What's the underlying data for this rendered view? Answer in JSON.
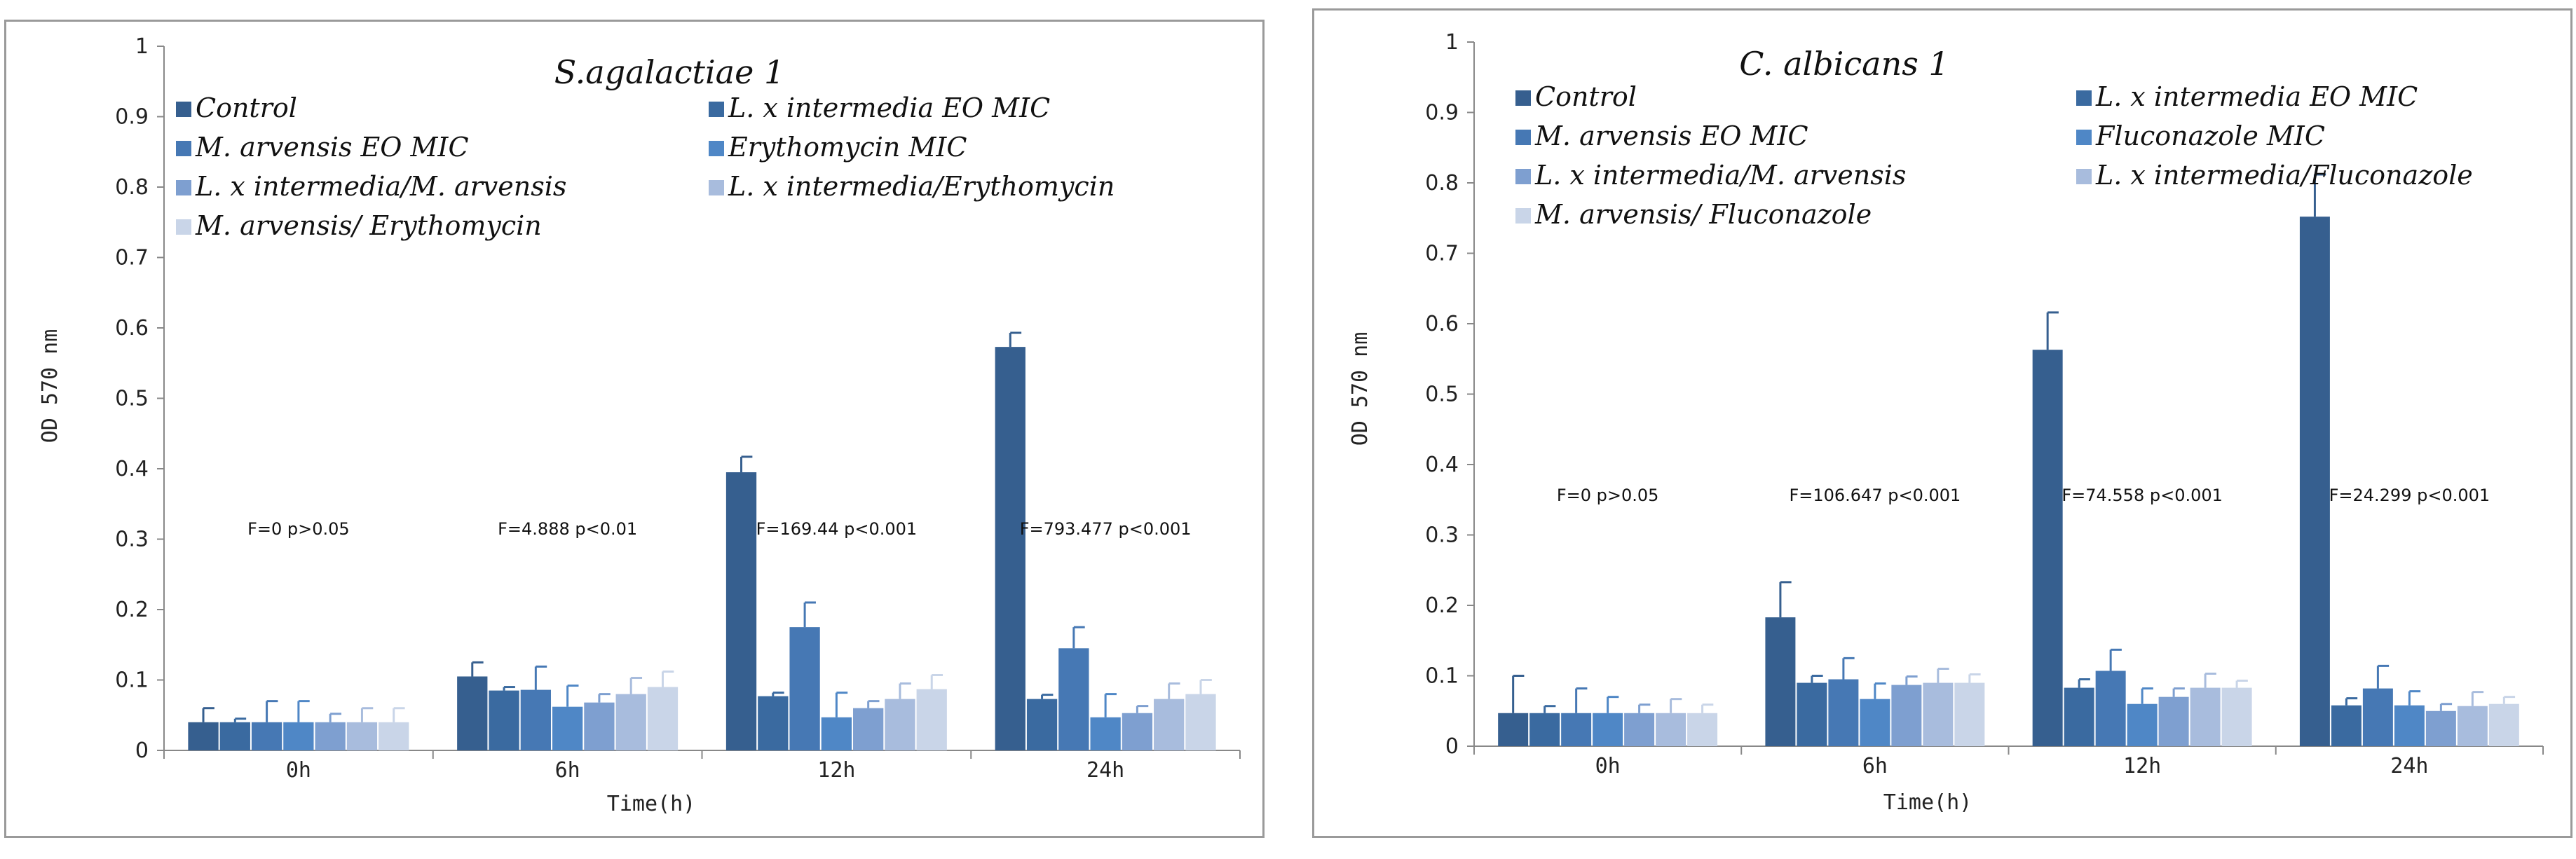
{
  "colors": [
    "#365f8f",
    "#3a6aa0",
    "#4678b4",
    "#4f87c6",
    "#7e9fd0",
    "#a8bcdd",
    "#c9d5e8"
  ],
  "chart_data": [
    {
      "type": "bar",
      "title": "S.agalactiae 1",
      "xlabel": "Time(h)",
      "ylabel": "OD 570 nm",
      "ylim": [
        0,
        1
      ],
      "yticks": [
        "0",
        "0.1",
        "0.2",
        "0.3",
        "0.4",
        "0.5",
        "0.6",
        "0.7",
        "0.8",
        "0.9",
        "1"
      ],
      "categories": [
        "0h",
        "6h",
        "12h",
        "24h"
      ],
      "legend_position": "top",
      "series": [
        {
          "name": "Control",
          "values": [
            0.04,
            0.105,
            0.395,
            0.573
          ],
          "errors": [
            0.02,
            0.02,
            0.022,
            0.02
          ]
        },
        {
          "name": "L. x intermedia EO MIC",
          "values": [
            0.04,
            0.085,
            0.077,
            0.073
          ],
          "errors": [
            0.005,
            0.005,
            0.005,
            0.006
          ]
        },
        {
          "name": "M. arvensis  EO MIC",
          "values": [
            0.04,
            0.086,
            0.175,
            0.145
          ],
          "errors": [
            0.03,
            0.033,
            0.035,
            0.03
          ]
        },
        {
          "name": "Erythomycin MIC",
          "values": [
            0.04,
            0.062,
            0.047,
            0.047
          ],
          "errors": [
            0.03,
            0.03,
            0.035,
            0.033
          ]
        },
        {
          "name": "L. x intermedia/M. arvensis",
          "values": [
            0.04,
            0.068,
            0.06,
            0.053
          ],
          "errors": [
            0.012,
            0.012,
            0.01,
            0.01
          ]
        },
        {
          "name": "L. x intermedia/Erythomycin",
          "values": [
            0.04,
            0.08,
            0.073,
            0.073
          ],
          "errors": [
            0.02,
            0.023,
            0.022,
            0.022
          ]
        },
        {
          "name": "M. arvensis/ Erythomycin",
          "values": [
            0.04,
            0.09,
            0.087,
            0.08
          ],
          "errors": [
            0.02,
            0.022,
            0.02,
            0.02
          ]
        }
      ],
      "annotations": [
        "F=0 p>0.05",
        "F=4.888 p<0.01",
        "F=169.44 p<0.001",
        "F=793.477 p<0.001"
      ]
    },
    {
      "type": "bar",
      "title": "C. albicans 1",
      "xlabel": "Time(h)",
      "ylabel": "OD 570 nm",
      "ylim": [
        0,
        1
      ],
      "yticks": [
        "0",
        "0.1",
        "0.2",
        "0.3",
        "0.4",
        "0.5",
        "0.6",
        "0.7",
        "0.8",
        "0.9",
        "1"
      ],
      "categories": [
        "0h",
        "6h",
        "12h",
        "24h"
      ],
      "legend_position": "top",
      "series": [
        {
          "name": "Control",
          "values": [
            0.047,
            0.183,
            0.563,
            0.752
          ],
          "errors": [
            0.053,
            0.05,
            0.053,
            0.06
          ]
        },
        {
          "name": "L. x intermedia  EO MIC",
          "values": [
            0.047,
            0.09,
            0.083,
            0.058
          ],
          "errors": [
            0.01,
            0.01,
            0.012,
            0.01
          ]
        },
        {
          "name": "M. arvensis  EO MIC",
          "values": [
            0.047,
            0.095,
            0.107,
            0.082
          ],
          "errors": [
            0.035,
            0.03,
            0.03,
            0.032
          ]
        },
        {
          "name": "Fluconazole MIC",
          "values": [
            0.047,
            0.067,
            0.06,
            0.058
          ],
          "errors": [
            0.023,
            0.022,
            0.022,
            0.02
          ]
        },
        {
          "name": "L. x intermedia/M. arvensis",
          "values": [
            0.047,
            0.087,
            0.07,
            0.05
          ],
          "errors": [
            0.012,
            0.012,
            0.012,
            0.01
          ]
        },
        {
          "name": "L. x intermedia/Fluconazole",
          "values": [
            0.047,
            0.09,
            0.083,
            0.057
          ],
          "errors": [
            0.02,
            0.02,
            0.02,
            0.02
          ]
        },
        {
          "name": "M. arvensis/ Fluconazole",
          "values": [
            0.047,
            0.09,
            0.083,
            0.06
          ],
          "errors": [
            0.012,
            0.012,
            0.01,
            0.01
          ]
        }
      ],
      "annotations": [
        "F=0 p>0.05",
        "F=106.647 p<0.001",
        "F=74.558 p<0.001",
        "F=24.299 p<0.001"
      ]
    }
  ]
}
